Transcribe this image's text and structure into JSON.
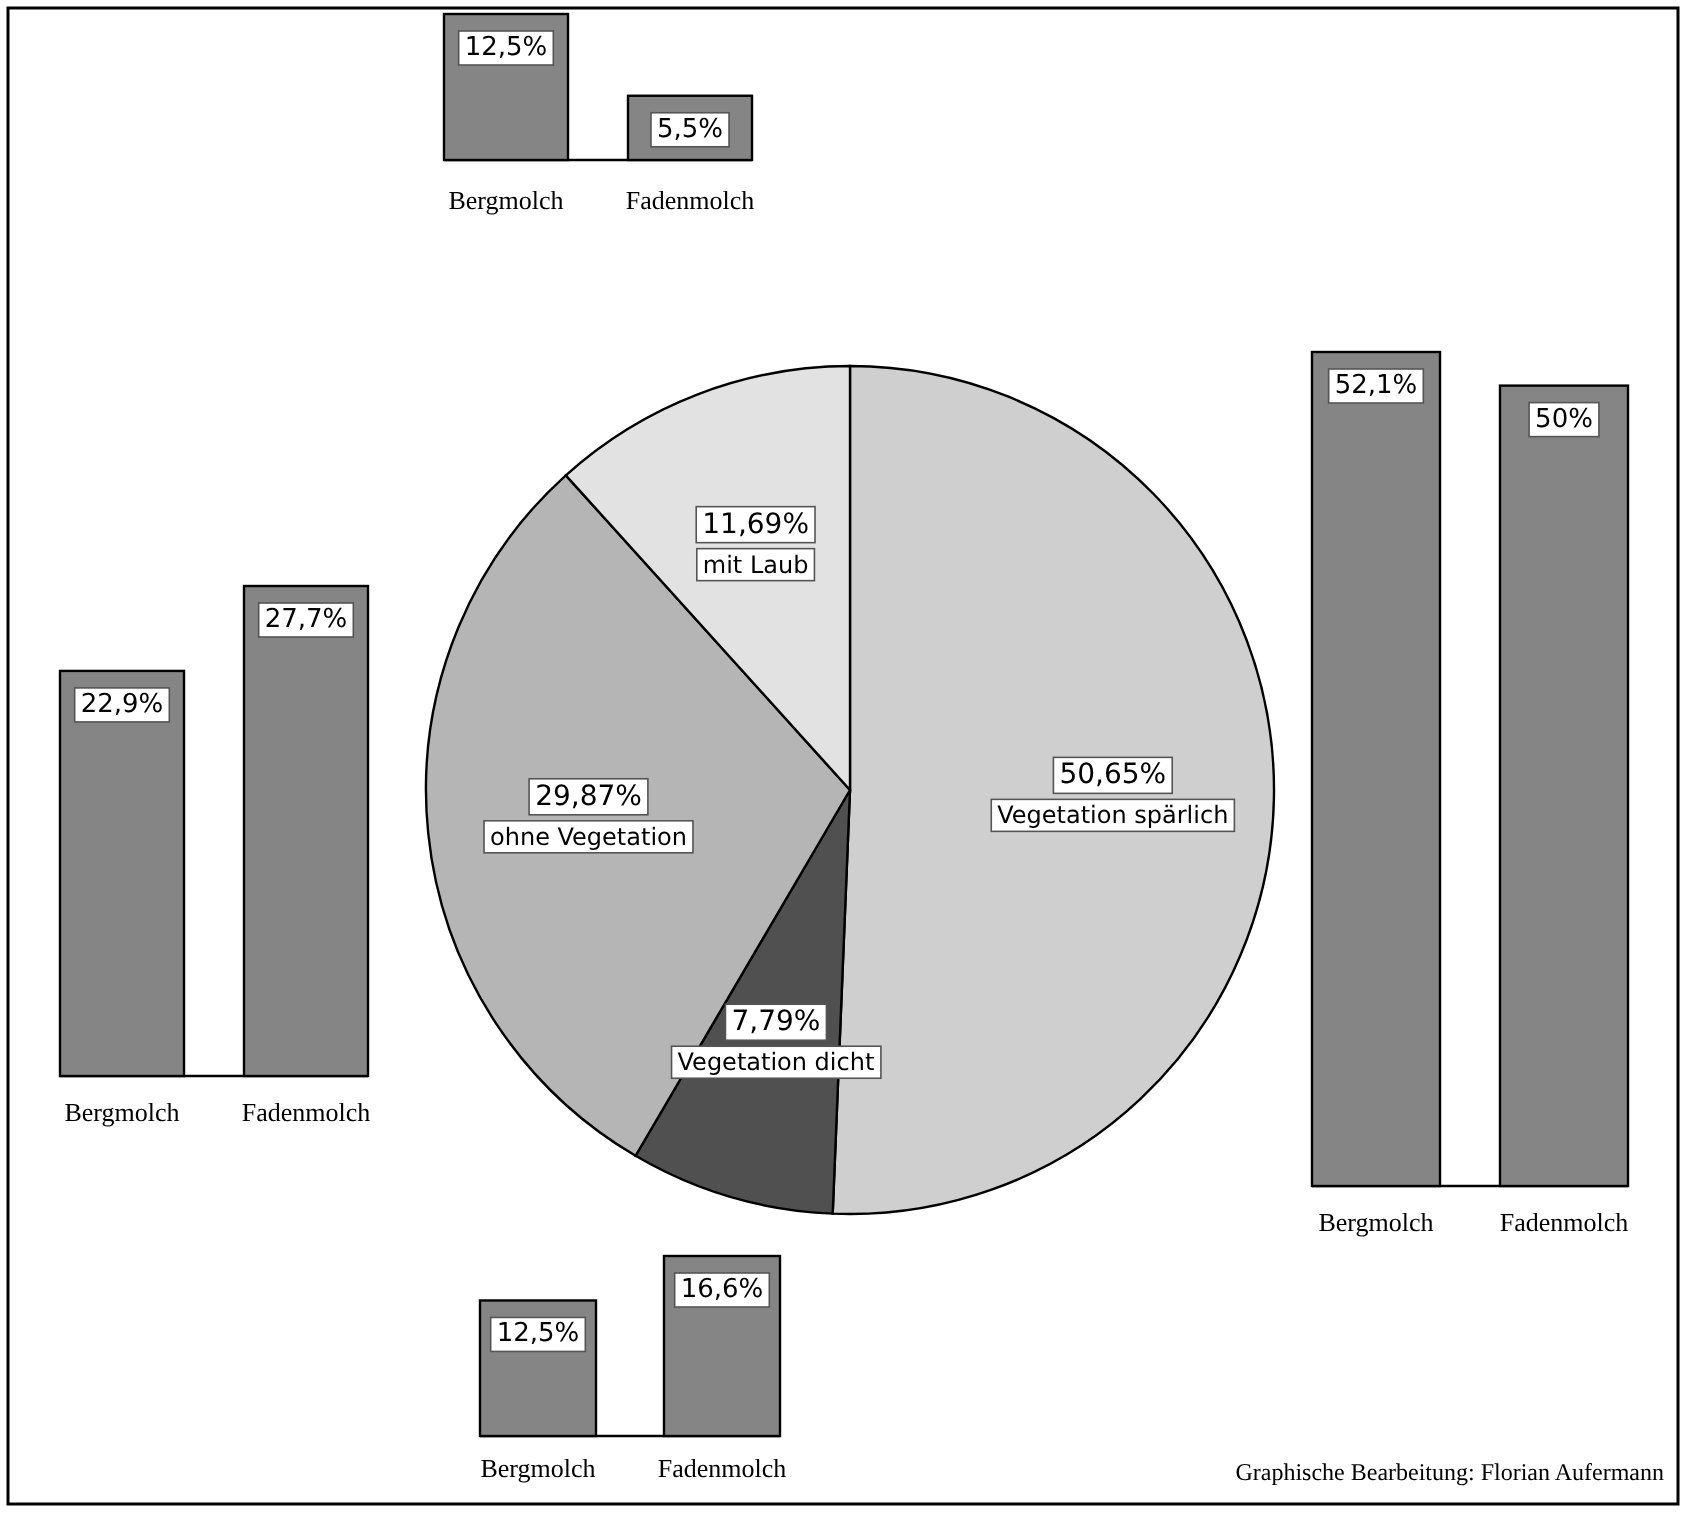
{
  "chart_data": [
    {
      "type": "pie",
      "categories": [
        "Vegetation spärlich",
        "Vegetation dicht",
        "ohne Vegetation",
        "mit Laub"
      ],
      "values": [
        50.65,
        7.79,
        29.87,
        11.69
      ],
      "value_labels": [
        "50,65%",
        "7,79%",
        "29,87%",
        "11,69%"
      ],
      "colors": [
        "#cfcfcf",
        "#505050",
        "#b5b5b5",
        "#e2e2e2"
      ],
      "annotations": [
        "Graphische Bearbeitung: Florian Aufermann"
      ]
    },
    {
      "type": "bar",
      "categories": [
        "Bergmolch",
        "Fadenmolch"
      ],
      "values": [
        12.5,
        5.5
      ],
      "value_labels": [
        "12,5%",
        "5,5%"
      ],
      "color": "#858585"
    },
    {
      "type": "bar",
      "categories": [
        "Bergmolch",
        "Fadenmolch"
      ],
      "values": [
        22.9,
        27.7
      ],
      "value_labels": [
        "22,9%",
        "27,7%"
      ],
      "color": "#858585"
    },
    {
      "type": "bar",
      "categories": [
        "Bergmolch",
        "Fadenmolch"
      ],
      "values": [
        52.1,
        50
      ],
      "value_labels": [
        "52,1%",
        "50%"
      ],
      "color": "#858585"
    },
    {
      "type": "bar",
      "categories": [
        "Bergmolch",
        "Fadenmolch"
      ],
      "values": [
        12.5,
        16.6
      ],
      "value_labels": [
        "12,5%",
        "16,6%"
      ],
      "color": "#858585"
    }
  ]
}
